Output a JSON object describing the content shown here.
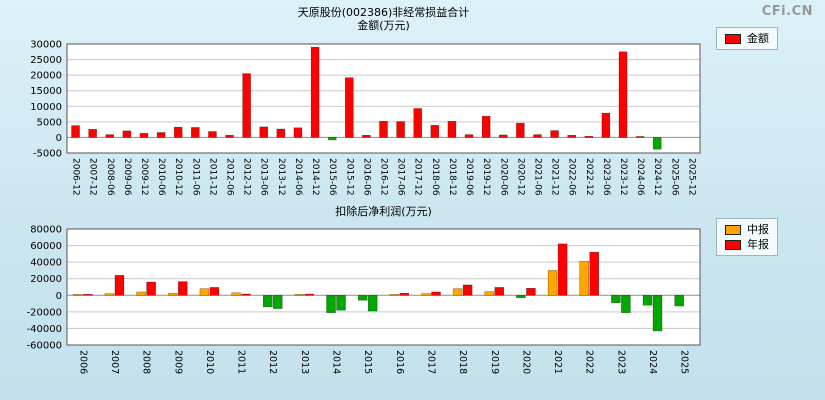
{
  "page": {
    "watermark": "CFi.CN"
  },
  "chart_data": [
    {
      "type": "bar",
      "title": "天原股份(002386)非经常损益合计",
      "subtitle": "金额(万元)",
      "ylabel": "金额(万元)",
      "xlabel": "",
      "ylim": [
        -5000,
        30000
      ],
      "yticks": [
        30000,
        25000,
        20000,
        15000,
        10000,
        5000,
        0,
        -5000
      ],
      "grid": true,
      "legend_position": "right-top",
      "negative_color": "#00a800",
      "categories": [
        "2006-12",
        "2007-12",
        "2008-06",
        "2009-06",
        "2009-12",
        "2010-06",
        "2010-12",
        "2011-06",
        "2011-12",
        "2012-06",
        "2012-12",
        "2013-06",
        "2013-12",
        "2014-06",
        "2014-12",
        "2015-06",
        "2015-12",
        "2016-06",
        "2016-12",
        "2017-06",
        "2017-12",
        "2018-06",
        "2018-12",
        "2019-06",
        "2019-12",
        "2020-06",
        "2020-12",
        "2021-06",
        "2021-12",
        "2022-06",
        "2022-12",
        "2023-06",
        "2023-12",
        "2024-06",
        "2024-12",
        "2025-06",
        "2025-12"
      ],
      "series": [
        {
          "name": "金额",
          "color": "#ff0000",
          "values": [
            3800,
            2600,
            900,
            2100,
            1300,
            1600,
            3300,
            3200,
            1900,
            700,
            20500,
            3400,
            2700,
            3100,
            29000,
            -800,
            19200,
            700,
            5200,
            5100,
            9300,
            3900,
            5200,
            900,
            6800,
            800,
            4600,
            900,
            2200,
            700,
            400,
            7800,
            27500,
            300,
            -3800,
            null,
            null
          ]
        }
      ]
    },
    {
      "type": "bar",
      "title": "扣除后净利润(万元)",
      "xlabel": "",
      "ylim": [
        -60000,
        80000
      ],
      "yticks": [
        80000,
        60000,
        40000,
        20000,
        0,
        -20000,
        -40000,
        -60000
      ],
      "grid": true,
      "legend_position": "right-top",
      "negative_color": "#00a800",
      "categories": [
        "2006",
        "2007",
        "2008",
        "2009",
        "2010",
        "2011",
        "2012",
        "2013",
        "2014",
        "2015",
        "2016",
        "2017",
        "2018",
        "2019",
        "2020",
        "2021",
        "2022",
        "2023",
        "2024",
        "2025"
      ],
      "series": [
        {
          "name": "中报",
          "color": "#ffa500",
          "values": [
            400,
            2000,
            4000,
            2500,
            8000,
            3000,
            -14000,
            800,
            -21000,
            -6000,
            1000,
            2000,
            8000,
            4500,
            -3000,
            30000,
            41000,
            -9000,
            -12000,
            -13000
          ]
        },
        {
          "name": "年报",
          "color": "#ff0000",
          "values": [
            900,
            24000,
            16000,
            16500,
            9500,
            1500,
            -16000,
            1500,
            -18000,
            -19000,
            2500,
            4000,
            12500,
            9500,
            8500,
            62000,
            52000,
            -21000,
            -43000,
            null
          ]
        }
      ]
    }
  ]
}
